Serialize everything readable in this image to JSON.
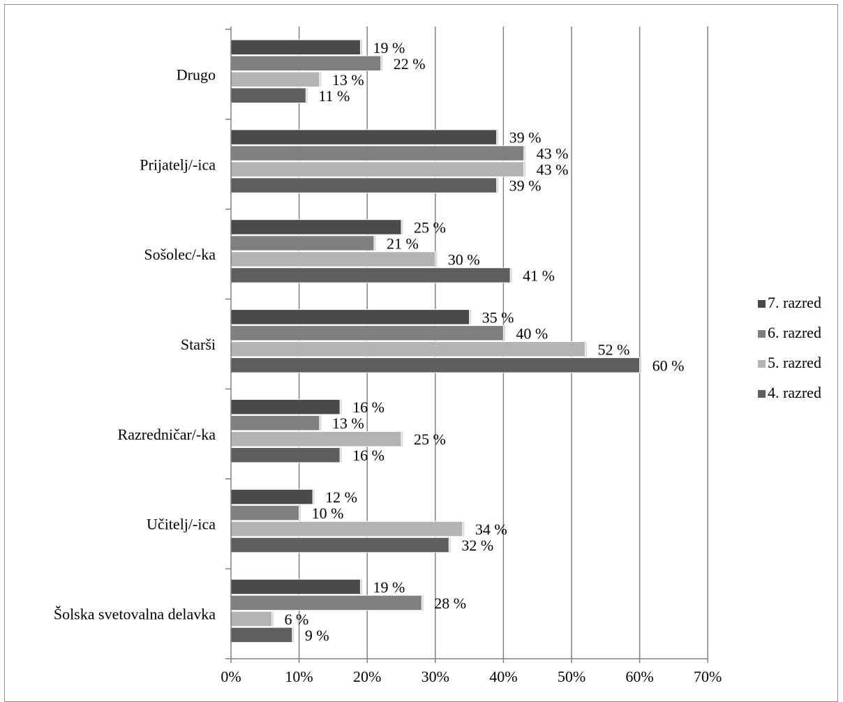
{
  "chart_data": {
    "type": "bar",
    "orientation": "horizontal",
    "categories": [
      "Drugo",
      "Prijatelj/-ica",
      "Sošolec/-ka",
      "Starši",
      "Razredničar/-ka",
      "Učitelj/-ica",
      "Šolska svetovalna delavka"
    ],
    "series": [
      {
        "name": "7. razred",
        "color": "#4a4a4a",
        "values": [
          19,
          39,
          25,
          35,
          16,
          12,
          19
        ],
        "labels": [
          "19 %",
          "39 %",
          "25 %",
          "35 %",
          "16 %",
          "12 %",
          "19 %"
        ]
      },
      {
        "name": "6. razred",
        "color": "#7f7f7f",
        "values": [
          22,
          43,
          21,
          40,
          13,
          10,
          28
        ],
        "labels": [
          "22 %",
          "43 %",
          "21 %",
          "40 %",
          "13 %",
          "10 %",
          "28 %"
        ]
      },
      {
        "name": "5. razred",
        "color": "#b3b3b3",
        "values": [
          13,
          43,
          30,
          52,
          25,
          34,
          6
        ],
        "labels": [
          "13 %",
          "43 %",
          "30 %",
          "52 %",
          "25 %",
          "34 %",
          "6 %"
        ]
      },
      {
        "name": "4. razred",
        "color": "#5e5e5e",
        "values": [
          11,
          39,
          41,
          60,
          16,
          32,
          9
        ],
        "labels": [
          "11 %",
          "39 %",
          "41 %",
          "60 %",
          "16 %",
          "32 %",
          "9 %"
        ]
      }
    ],
    "xlim": [
      0,
      70
    ],
    "xticks": [
      "0%",
      "10%",
      "20%",
      "30%",
      "40%",
      "50%",
      "60%",
      "70%"
    ],
    "legend_order": [
      "7. razred",
      "6. razred",
      "5. razred",
      "4. razred"
    ],
    "legend_position": "right",
    "grid": "vertical",
    "gridline_color": "#808080",
    "title": "",
    "xlabel": "",
    "ylabel": ""
  }
}
